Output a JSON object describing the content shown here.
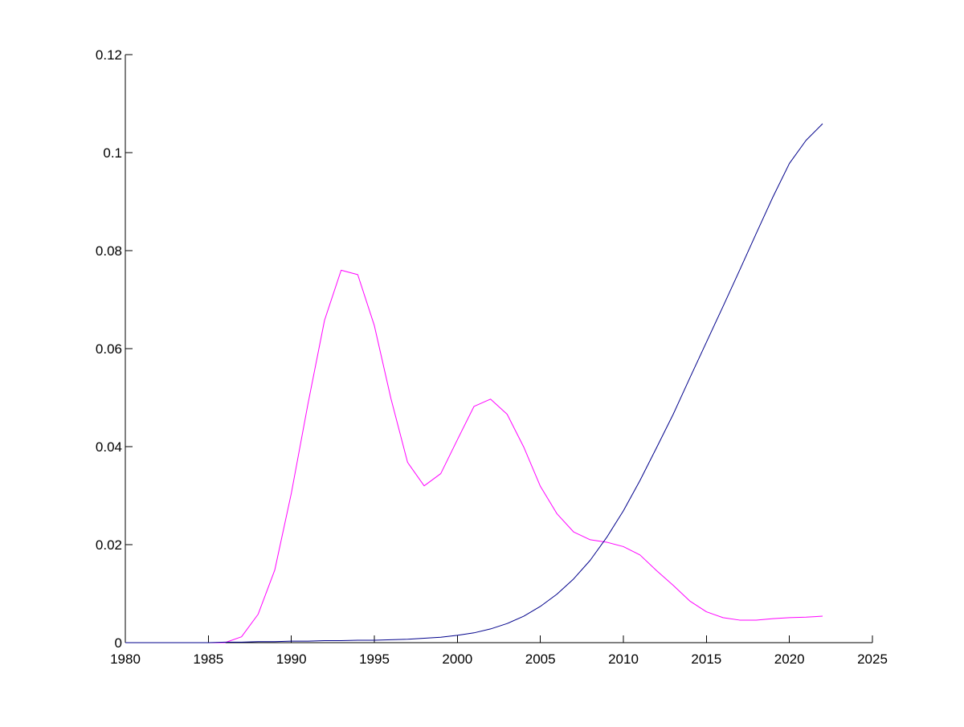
{
  "chart_data": {
    "type": "line",
    "title": "",
    "xlabel": "",
    "ylabel": "",
    "xlim": [
      1980,
      2025
    ],
    "ylim": [
      0,
      0.12
    ],
    "xticks": [
      "1980",
      "1985",
      "1990",
      "1995",
      "2000",
      "2005",
      "2010",
      "2015",
      "2020",
      "2025"
    ],
    "yticks": [
      "0",
      "0.02",
      "0.04",
      "0.06",
      "0.08",
      "0.1",
      "0.12"
    ],
    "grid": false,
    "legend": "none",
    "series": [
      {
        "color": "#ff00ff",
        "x": [
          1980,
          1981,
          1982,
          1983,
          1984,
          1985,
          1986,
          1987,
          1988,
          1989,
          1990,
          1991,
          1992,
          1993,
          1994,
          1995,
          1996,
          1997,
          1998,
          1999,
          2000,
          2001,
          2002,
          2003,
          2004,
          2005,
          2006,
          2007,
          2008,
          2009,
          2010,
          2011,
          2012,
          2013,
          2014,
          2015,
          2016,
          2017,
          2018,
          2019,
          2020,
          2021,
          2022
        ],
        "y": [
          0,
          0,
          0,
          0,
          0,
          0,
          0,
          0.0012,
          0.0058,
          0.0148,
          0.0305,
          0.0487,
          0.0658,
          0.076,
          0.0751,
          0.0647,
          0.0498,
          0.0368,
          0.032,
          0.0345,
          0.0414,
          0.0482,
          0.0497,
          0.0466,
          0.0399,
          0.0319,
          0.0263,
          0.0226,
          0.021,
          0.0205,
          0.0196,
          0.0179,
          0.0147,
          0.0117,
          0.0085,
          0.0063,
          0.0051,
          0.0046,
          0.0046,
          0.0049,
          0.0051,
          0.0052,
          0.0054
        ]
      },
      {
        "color": "#00008b",
        "x": [
          1980,
          1981,
          1982,
          1983,
          1984,
          1985,
          1986,
          1987,
          1988,
          1989,
          1990,
          1991,
          1992,
          1993,
          1994,
          1995,
          1996,
          1997,
          1998,
          1999,
          2000,
          2001,
          2002,
          2003,
          2004,
          2005,
          2006,
          2007,
          2008,
          2009,
          2010,
          2011,
          2012,
          2013,
          2014,
          2015,
          2016,
          2017,
          2018,
          2019,
          2020,
          2021,
          2022
        ],
        "y": [
          0,
          0,
          0,
          0,
          0,
          0,
          0.0001,
          0.0001,
          0.0002,
          0.0002,
          0.0003,
          0.0003,
          0.0004,
          0.0004,
          0.0005,
          0.0005,
          0.0006,
          0.0007,
          0.0009,
          0.0011,
          0.0015,
          0.002,
          0.0028,
          0.0039,
          0.0054,
          0.0074,
          0.0099,
          0.013,
          0.0168,
          0.0215,
          0.0269,
          0.0331,
          0.0398,
          0.0466,
          0.054,
          0.0613,
          0.0686,
          0.076,
          0.0835,
          0.0909,
          0.0978,
          0.1025,
          0.1059
        ]
      }
    ]
  }
}
